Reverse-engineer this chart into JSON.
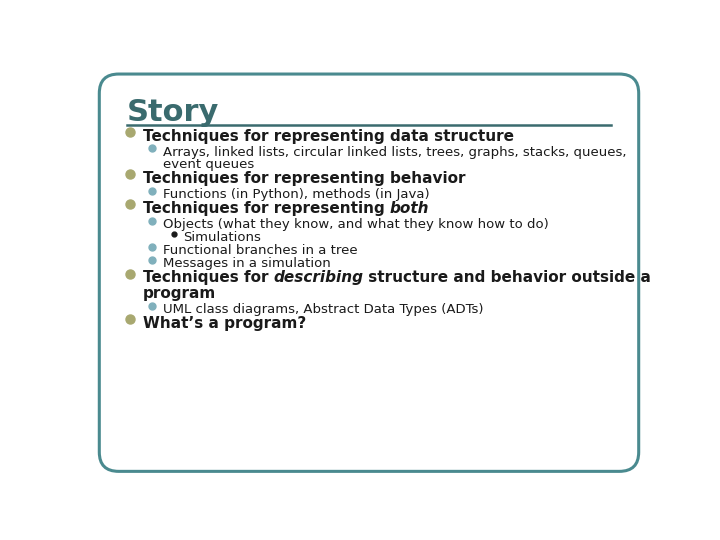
{
  "title": "Story",
  "title_color": "#3a6b6e",
  "title_fontsize": 22,
  "separator_color": "#3a6b6e",
  "background_color": "#ffffff",
  "border_color": "#4a8a8f",
  "bullet_color_l1": "#a8a870",
  "bullet_color_l2": "#80b0bc",
  "bullet_color_l3": "#1a1a1a",
  "text_color": "#1a1a1a",
  "items": [
    {
      "level": 1,
      "bold": true,
      "parts": [
        [
          "Techniques for representing data structure",
          false
        ]
      ]
    },
    {
      "level": 2,
      "bold": false,
      "parts": [
        [
          "Arrays, linked lists, circular linked lists, trees, graphs, stacks, queues,",
          false
        ]
      ],
      "cont": "event queues"
    },
    {
      "level": 1,
      "bold": true,
      "parts": [
        [
          "Techniques for representing behavior",
          false
        ]
      ]
    },
    {
      "level": 2,
      "bold": false,
      "parts": [
        [
          "Functions (in Python), methods (in Java)",
          false
        ]
      ]
    },
    {
      "level": 1,
      "bold": true,
      "parts": [
        [
          "Techniques for representing ",
          false
        ],
        [
          "both",
          true
        ]
      ]
    },
    {
      "level": 2,
      "bold": false,
      "parts": [
        [
          "Objects (what they know, and what they know how to do)",
          false
        ]
      ]
    },
    {
      "level": 3,
      "bold": false,
      "parts": [
        [
          "Simulations",
          false
        ]
      ]
    },
    {
      "level": 2,
      "bold": false,
      "parts": [
        [
          "Functional branches in a tree",
          false
        ]
      ]
    },
    {
      "level": 2,
      "bold": false,
      "parts": [
        [
          "Messages in a simulation",
          false
        ]
      ]
    },
    {
      "level": 1,
      "bold": true,
      "parts": [
        [
          "Techniques for ",
          false
        ],
        [
          "describing",
          true
        ],
        [
          " structure and behavior outside a",
          false
        ]
      ],
      "cont": "program"
    },
    {
      "level": 2,
      "bold": false,
      "parts": [
        [
          "UML class diagrams, Abstract Data Types (ADTs)",
          false
        ]
      ]
    },
    {
      "level": 1,
      "bold": true,
      "parts": [
        [
          "What’s a program?",
          false
        ]
      ]
    }
  ]
}
